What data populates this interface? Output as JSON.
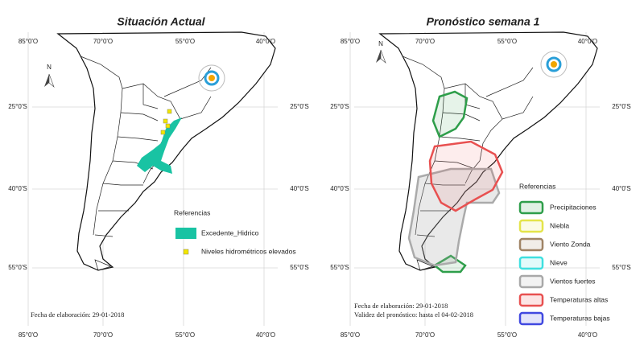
{
  "north": "N",
  "panels": [
    {
      "title": "Situación Actual",
      "lon_labels": [
        "85°0'O",
        "70°0'O",
        "55°0'O",
        "40°0'O"
      ],
      "lat_labels": [
        "25°0'S",
        "40°0'S",
        "55°0'S"
      ],
      "legend": {
        "title": "Referencias",
        "items": [
          {
            "label": "Excedente_Hidrico",
            "color": "#19c3a3"
          },
          {
            "label": "Niveles hidrométricos elevados",
            "color": "#f2e600"
          }
        ]
      },
      "notes": [
        "Fecha de elaboración: 29-01-2018"
      ]
    },
    {
      "title": "Pronóstico semana 1",
      "lon_labels": [
        "85°0'O",
        "70°0'O",
        "55°0'O",
        "40°0'O"
      ],
      "lat_labels": [
        "25°0'S",
        "40°0'S",
        "55°0'S"
      ],
      "legend": {
        "title": "Referencias",
        "items": [
          {
            "label": "Precipitaciones",
            "color": "#2e9e4a"
          },
          {
            "label": "Niebla",
            "color": "#e4e44a"
          },
          {
            "label": "Viento Zonda",
            "color": "#a08466"
          },
          {
            "label": "Nieve",
            "color": "#3fe0e0"
          },
          {
            "label": "Vientos fuertes",
            "color": "#a8a8a8"
          },
          {
            "label": "Temperaturas altas",
            "color": "#e85050"
          },
          {
            "label": "Temperaturas bajas",
            "color": "#4048e0"
          }
        ]
      },
      "notes": [
        "Fecha de elaboración: 29-01-2018",
        "Validez del pronóstico: hasta el 04-02-2018"
      ]
    }
  ]
}
